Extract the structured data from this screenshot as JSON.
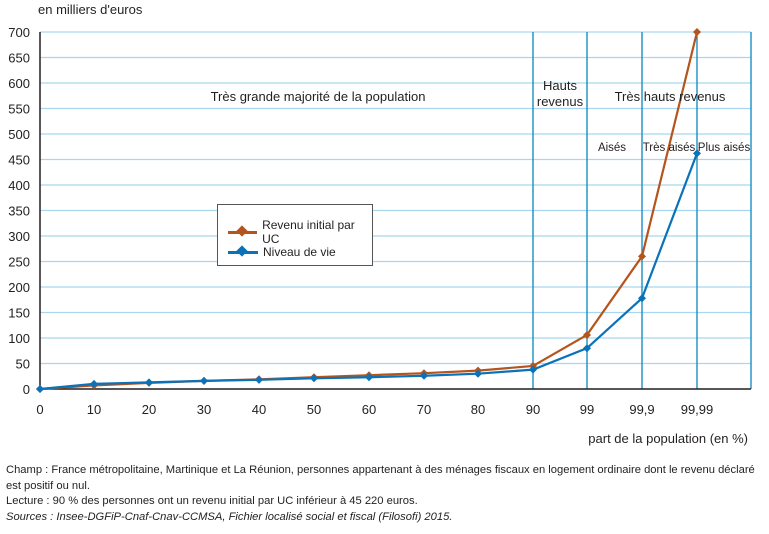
{
  "chart_data": {
    "type": "line",
    "ylabel": "en milliers d'euros",
    "xlabel": "part de la population (en %)",
    "x": [
      "0",
      "10",
      "20",
      "30",
      "40",
      "50",
      "60",
      "70",
      "80",
      "90",
      "99",
      "99,9",
      "99,99"
    ],
    "yticks": [
      0,
      50,
      100,
      150,
      200,
      250,
      300,
      350,
      400,
      450,
      500,
      550,
      600,
      650,
      700
    ],
    "ylim": [
      0,
      700
    ],
    "grid": true,
    "series": [
      {
        "name": "Revenu initial par UC",
        "color": "#b5541c",
        "values": [
          0,
          7,
          12,
          16,
          19,
          23,
          27,
          31,
          36,
          45.22,
          106,
          260,
          700
        ]
      },
      {
        "name": "Niveau de vie",
        "color": "#0a72b8",
        "values": [
          0,
          10,
          13,
          16,
          18,
          21,
          23,
          26,
          30,
          38,
          80,
          178,
          462
        ]
      }
    ],
    "legend_position": "center-left",
    "annotations": {
      "majorite": "Très grande majorité de la population",
      "hauts_line1": "Hauts",
      "hauts_line2": "revenus",
      "tres_hauts": "Très hauts revenus",
      "aises": "Aisés",
      "tres_aises": "Très aisés",
      "plus_aises": "Plus aisés"
    }
  },
  "notes": {
    "champ": "Champ : France métropolitaine, Martinique et La Réunion, personnes appartenant à des ménages fiscaux en logement ordinaire dont le revenu déclaré est positif ou nul.",
    "lecture": "Lecture : 90 % des personnes ont un revenu initial par UC inférieur à 45 220 euros.",
    "sources": "Sources :  Insee-DGFiP-Cnaf-Cnav-CCMSA, Fichier localisé social et fiscal (Filosofi) 2015."
  }
}
